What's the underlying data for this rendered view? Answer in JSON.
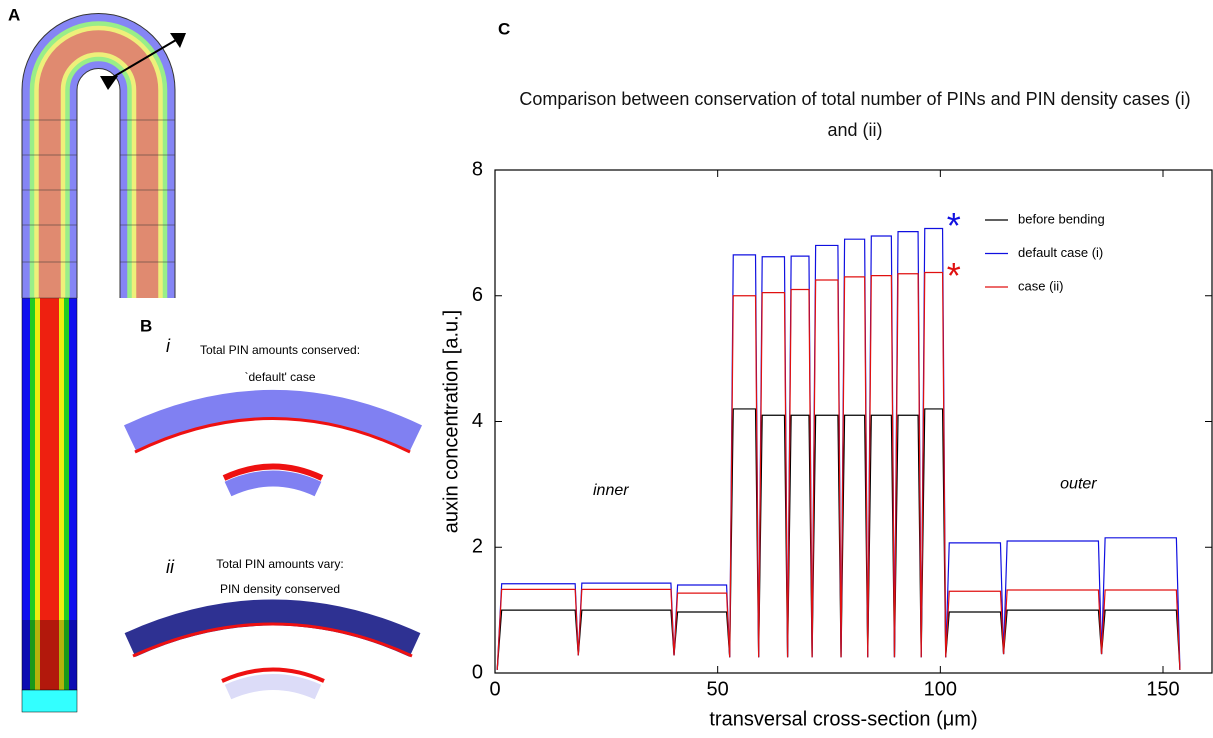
{
  "panels": {
    "a": "A",
    "b": "B",
    "c": "C"
  },
  "panel_b": {
    "i_label": "i",
    "i_line1": "Total PIN amounts conserved:",
    "i_line2": "`default' case",
    "ii_label": "ii",
    "ii_line1": "Total PIN amounts vary:",
    "ii_line2": "PIN density conserved"
  },
  "chart_data": {
    "type": "line",
    "title": "Comparison between conservation of total number of PINs and PIN density cases (i) and (ii)",
    "x_label": "transversal cross-section (μm)",
    "y_label": "auxin concentration [a.u.]",
    "xlim": [
      0,
      161
    ],
    "ylim": [
      0,
      8
    ],
    "xticks": [
      0,
      50,
      100,
      150
    ],
    "yticks": [
      0,
      2,
      4,
      6,
      8
    ],
    "legend": "upper right",
    "annotations": [
      {
        "text": "inner",
        "x": 26,
        "y": 2.9
      },
      {
        "text": "outer",
        "x": 131,
        "y": 3.0
      },
      {
        "text": "*",
        "x": 103,
        "y": 7.2,
        "color": "#1010e0"
      },
      {
        "text": "*",
        "x": 103,
        "y": 6.4,
        "color": "#e01010"
      }
    ],
    "x": [
      0.5,
      1.5,
      18,
      18.7,
      19.5,
      39.5,
      40.2,
      41,
      52,
      52.7,
      53.5,
      58.5,
      59.2,
      60,
      65,
      65.7,
      66.5,
      70.5,
      71.2,
      72,
      77,
      77.7,
      78.5,
      83,
      83.7,
      84.5,
      89,
      89.7,
      90.5,
      95,
      95.7,
      96.5,
      100.5,
      101.2,
      102,
      113.5,
      114.2,
      115,
      135.5,
      136.2,
      137,
      153,
      153.8
    ],
    "series": [
      {
        "name": "before bending",
        "color": "#000000",
        "values": [
          0.05,
          1.0,
          1.0,
          0.28,
          1.0,
          1.0,
          0.28,
          0.97,
          0.97,
          0.25,
          4.2,
          4.2,
          0.25,
          4.1,
          4.1,
          0.25,
          4.1,
          4.1,
          0.25,
          4.1,
          4.1,
          0.25,
          4.1,
          4.1,
          0.25,
          4.1,
          4.1,
          0.25,
          4.1,
          4.1,
          0.25,
          4.2,
          4.2,
          0.25,
          0.97,
          0.97,
          0.3,
          1.0,
          1.0,
          0.3,
          1.0,
          1.0,
          0.05
        ]
      },
      {
        "name": "default case (i)",
        "color": "#1010e0",
        "values": [
          0.05,
          1.42,
          1.42,
          0.28,
          1.43,
          1.43,
          0.28,
          1.4,
          1.4,
          0.25,
          6.65,
          6.65,
          0.25,
          6.62,
          6.62,
          0.25,
          6.63,
          6.63,
          0.25,
          6.8,
          6.8,
          0.25,
          6.9,
          6.9,
          0.25,
          6.95,
          6.95,
          0.25,
          7.02,
          7.02,
          0.25,
          7.07,
          7.07,
          0.25,
          2.07,
          2.07,
          0.3,
          2.1,
          2.1,
          0.3,
          2.15,
          2.15,
          0.05
        ]
      },
      {
        "name": "case (ii)",
        "color": "#e01010",
        "values": [
          0.05,
          1.33,
          1.33,
          0.28,
          1.33,
          1.33,
          0.28,
          1.27,
          1.27,
          0.25,
          6.0,
          6.0,
          0.25,
          6.05,
          6.05,
          0.25,
          6.1,
          6.1,
          0.25,
          6.25,
          6.25,
          0.25,
          6.3,
          6.3,
          0.25,
          6.32,
          6.32,
          0.25,
          6.35,
          6.35,
          0.25,
          6.37,
          6.37,
          0.25,
          1.3,
          1.3,
          0.3,
          1.32,
          1.32,
          0.3,
          1.32,
          1.32,
          0.05
        ]
      }
    ]
  }
}
